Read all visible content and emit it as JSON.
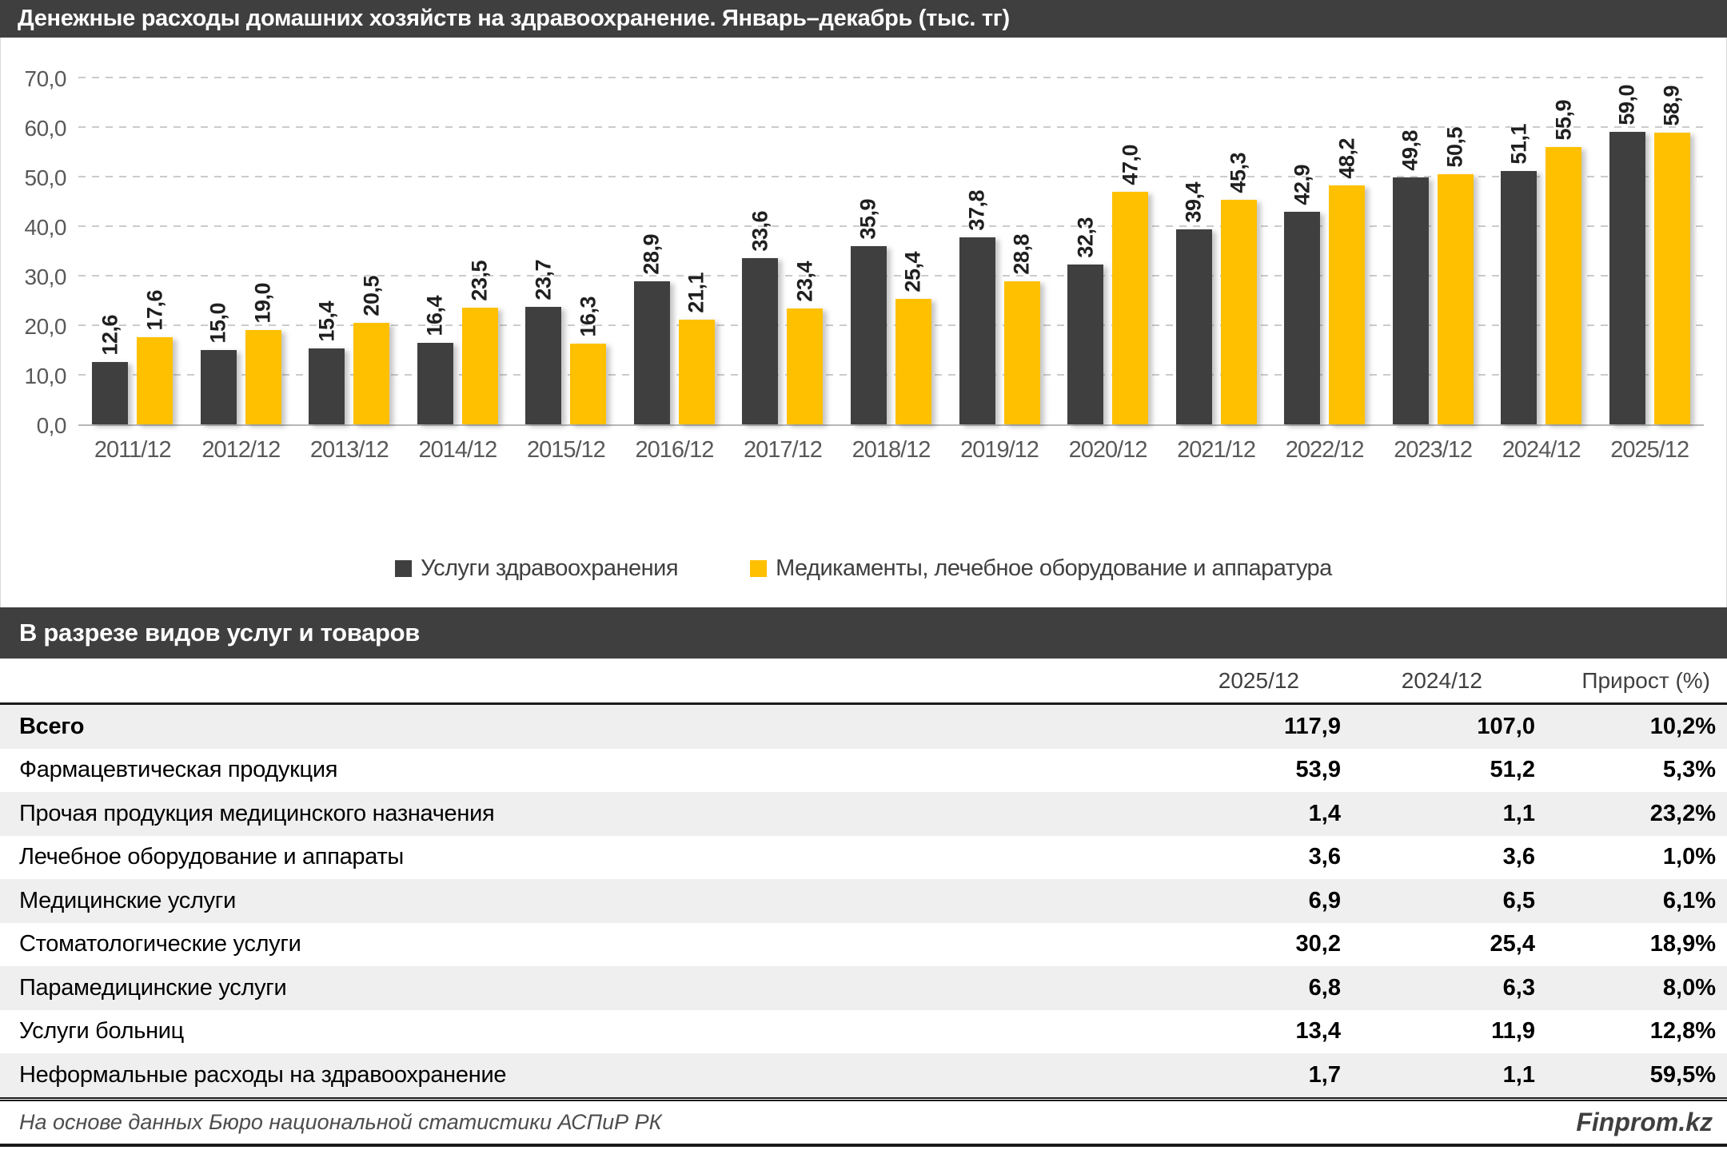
{
  "title": "Денежные расходы домашних хозяйств на здравоохранение. Январь–декабрь (тыс. тг)",
  "colors": {
    "header_bg": "#3F3F3F",
    "series_dark": "#3F3F3F",
    "series_yellow": "#FFC000",
    "axis_text": "#595959",
    "grid": "#CBCBCB",
    "stripe": "#EFEFEF"
  },
  "chart_data": {
    "type": "bar",
    "title": "Денежные расходы домашних хозяйств на здравоохранение. Январь–декабрь (тыс. тг)",
    "categories": [
      "2011/12",
      "2012/12",
      "2013/12",
      "2014/12",
      "2015/12",
      "2016/12",
      "2017/12",
      "2018/12",
      "2019/12",
      "2020/12",
      "2021/12",
      "2022/12",
      "2023/12",
      "2024/12",
      "2025/12"
    ],
    "series": [
      {
        "name": "Услуги здравоохранения",
        "color": "#3F3F3F",
        "values": [
          12.6,
          15.0,
          15.4,
          16.4,
          23.7,
          28.9,
          33.6,
          35.9,
          37.8,
          32.3,
          39.4,
          42.9,
          49.8,
          51.1,
          59.0
        ]
      },
      {
        "name": "Медикаменты, лечебное оборудование и аппаратура",
        "color": "#FFC000",
        "values": [
          17.6,
          19.0,
          20.5,
          23.5,
          16.3,
          21.1,
          23.4,
          25.4,
          28.8,
          47.0,
          45.3,
          48.2,
          50.5,
          55.9,
          58.9
        ]
      }
    ],
    "ylim": [
      0,
      70
    ],
    "yticks": [
      "0,0",
      "10,0",
      "20,0",
      "30,0",
      "40,0",
      "50,0",
      "60,0",
      "70,0"
    ],
    "grid": "horizontal-dashed",
    "legend_position": "bottom",
    "data_labels": "rotated-vertical, comma decimal"
  },
  "section2": {
    "title": "В разрезе видов услуг и товаров"
  },
  "table": {
    "columns": [
      "2025/12",
      "2024/12",
      "Прирост (%)"
    ],
    "rows": [
      {
        "label": "Всего",
        "v2025": "117,9",
        "v2024": "107,0",
        "growth": "10,2%",
        "bold": true
      },
      {
        "label": "Фармацевтическая продукция",
        "v2025": "53,9",
        "v2024": "51,2",
        "growth": "5,3%",
        "bold": false
      },
      {
        "label": "Прочая продукция медицинского назначения",
        "v2025": "1,4",
        "v2024": "1,1",
        "growth": "23,2%",
        "bold": false
      },
      {
        "label": "Лечебное оборудование и аппараты",
        "v2025": "3,6",
        "v2024": "3,6",
        "growth": "1,0%",
        "bold": false
      },
      {
        "label": "Медицинские услуги",
        "v2025": "6,9",
        "v2024": "6,5",
        "growth": "6,1%",
        "bold": false
      },
      {
        "label": "Стоматологические услуги",
        "v2025": "30,2",
        "v2024": "25,4",
        "growth": "18,9%",
        "bold": false
      },
      {
        "label": "Парамедицинские услуги",
        "v2025": "6,8",
        "v2024": "6,3",
        "growth": "8,0%",
        "bold": false
      },
      {
        "label": "Услуги больниц",
        "v2025": "13,4",
        "v2024": "11,9",
        "growth": "12,8%",
        "bold": false
      },
      {
        "label": "Неформальные расходы на здравоохранение",
        "v2025": "1,7",
        "v2024": "1,1",
        "growth": "59,5%",
        "bold": false
      }
    ]
  },
  "footer": {
    "source": "На основе данных Бюро национальной статистики АСПиР РК",
    "brand": "Finprom.kz"
  }
}
